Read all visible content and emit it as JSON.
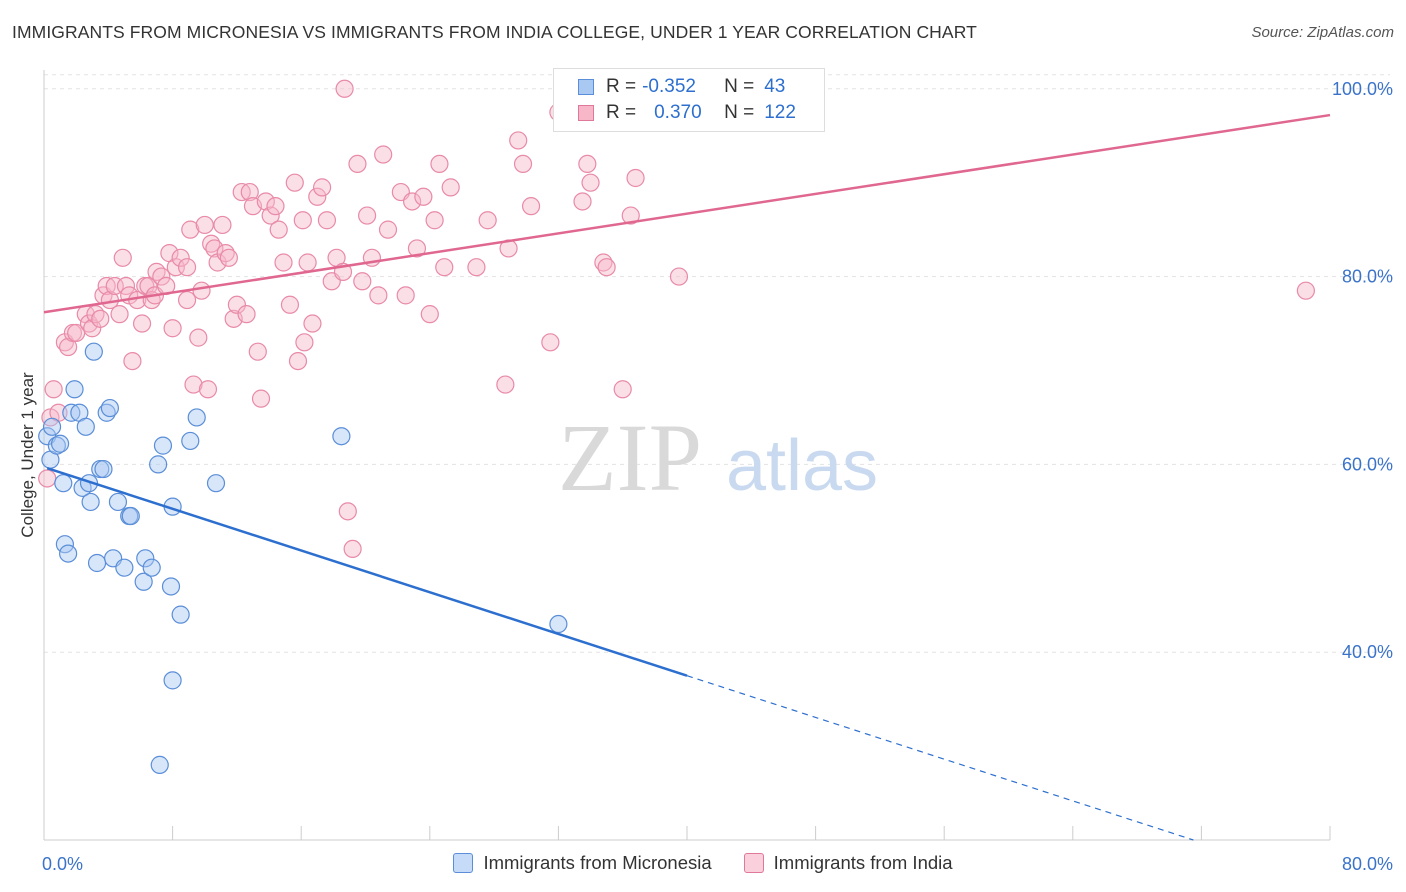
{
  "header": {
    "title": "IMMIGRANTS FROM MICRONESIA VS IMMIGRANTS FROM INDIA COLLEGE, UNDER 1 YEAR CORRELATION CHART",
    "source": "Source: ZipAtlas.com"
  },
  "watermark": {
    "zip": "ZIP",
    "atlas": "atlas"
  },
  "legend": {
    "rows": [
      {
        "r_label": "R =",
        "r_value": "-0.352",
        "n_label": "N =",
        "n_value": "43",
        "fill": "#a9c8f2",
        "stroke": "#5a8ed8"
      },
      {
        "r_label": "R =",
        "r_value": "0.370",
        "n_label": "N =",
        "n_value": "122",
        "fill": "#f7b7c9",
        "stroke": "#e0789a"
      }
    ]
  },
  "bottom_legend": [
    {
      "label": "Immigrants from Micronesia",
      "fill": "#c5dbf7",
      "stroke": "#5a8ed8"
    },
    {
      "label": "Immigrants from India",
      "fill": "#fad0dc",
      "stroke": "#e0789a"
    }
  ],
  "chart_data": {
    "type": "scatter",
    "title": "IMMIGRANTS FROM MICRONESIA VS IMMIGRANTS FROM INDIA COLLEGE, UNDER 1 YEAR CORRELATION CHART",
    "xlabel": "",
    "ylabel": "College, Under 1 year",
    "xlim": [
      0,
      80
    ],
    "ylim": [
      20,
      102
    ],
    "x_tick_labels": [
      "0.0%",
      "80.0%"
    ],
    "y_ticks": [
      40,
      60,
      80,
      100
    ],
    "y_tick_labels": [
      "40.0%",
      "60.0%",
      "80.0%",
      "100.0%"
    ],
    "grid": true,
    "legend_position": "top-center",
    "colors": {
      "micronesia": "#2d6fcf",
      "india": "#e0678f",
      "tick_label": "#3b73c9"
    },
    "series": [
      {
        "name": "Immigrants from Micronesia",
        "r": -0.352,
        "n": 43,
        "trend": {
          "x0": 0.2,
          "y0": 59.6,
          "x1": 40.0,
          "y1": 37.5,
          "dash_to_x": 71.5,
          "dash_to_y": 20.0
        },
        "points": [
          [
            0.2,
            63.0
          ],
          [
            0.4,
            60.5
          ],
          [
            0.5,
            64.0
          ],
          [
            0.8,
            62.0
          ],
          [
            1.0,
            62.2
          ],
          [
            1.2,
            58.0
          ],
          [
            1.3,
            51.5
          ],
          [
            1.5,
            50.5
          ],
          [
            1.7,
            65.5
          ],
          [
            1.9,
            68.0
          ],
          [
            2.2,
            65.5
          ],
          [
            2.4,
            57.5
          ],
          [
            2.6,
            64.0
          ],
          [
            2.8,
            58.0
          ],
          [
            2.9,
            56.0
          ],
          [
            3.1,
            72.0
          ],
          [
            3.3,
            49.5
          ],
          [
            3.5,
            59.5
          ],
          [
            3.7,
            59.5
          ],
          [
            3.9,
            65.5
          ],
          [
            4.1,
            66.0
          ],
          [
            4.3,
            50.0
          ],
          [
            4.6,
            56.0
          ],
          [
            5.0,
            49.0
          ],
          [
            5.3,
            54.5
          ],
          [
            5.4,
            54.5
          ],
          [
            6.2,
            47.5
          ],
          [
            6.3,
            50.0
          ],
          [
            6.7,
            49.0
          ],
          [
            7.1,
            60.0
          ],
          [
            7.4,
            62.0
          ],
          [
            7.9,
            47.0
          ],
          [
            8.0,
            37.0
          ],
          [
            8.0,
            55.5
          ],
          [
            8.5,
            44.0
          ],
          [
            9.1,
            62.5
          ],
          [
            9.5,
            65.0
          ],
          [
            10.7,
            58.0
          ],
          [
            7.2,
            28.0
          ],
          [
            18.5,
            63.0
          ],
          [
            32.0,
            43.0
          ]
        ]
      },
      {
        "name": "Immigrants from India",
        "r": 0.37,
        "n": 122,
        "trend": {
          "x0": 0,
          "y0": 76.2,
          "x1": 80,
          "y1": 97.2
        },
        "points": [
          [
            0.2,
            58.5
          ],
          [
            0.4,
            65.0
          ],
          [
            0.6,
            68.0
          ],
          [
            0.9,
            65.5
          ],
          [
            1.3,
            73.0
          ],
          [
            1.5,
            72.5
          ],
          [
            1.8,
            74.0
          ],
          [
            2.0,
            74.0
          ],
          [
            2.6,
            76.0
          ],
          [
            2.8,
            75.0
          ],
          [
            3.0,
            74.5
          ],
          [
            3.2,
            76.0
          ],
          [
            3.5,
            75.5
          ],
          [
            3.7,
            78.0
          ],
          [
            3.9,
            79.0
          ],
          [
            4.1,
            77.5
          ],
          [
            4.4,
            79.0
          ],
          [
            4.7,
            76.0
          ],
          [
            4.9,
            82.0
          ],
          [
            5.1,
            79.0
          ],
          [
            5.3,
            78.0
          ],
          [
            5.5,
            71.0
          ],
          [
            5.8,
            77.5
          ],
          [
            6.1,
            75.0
          ],
          [
            6.3,
            79.0
          ],
          [
            6.5,
            79.0
          ],
          [
            6.7,
            77.5
          ],
          [
            6.9,
            78.0
          ],
          [
            7.0,
            80.5
          ],
          [
            7.3,
            80.0
          ],
          [
            7.6,
            79.0
          ],
          [
            7.8,
            82.5
          ],
          [
            8.0,
            74.5
          ],
          [
            8.2,
            81.0
          ],
          [
            8.5,
            82.0
          ],
          [
            8.9,
            81.0
          ],
          [
            8.9,
            77.5
          ],
          [
            9.1,
            85.0
          ],
          [
            9.3,
            68.5
          ],
          [
            9.6,
            73.5
          ],
          [
            9.8,
            78.5
          ],
          [
            10.0,
            85.5
          ],
          [
            10.2,
            68.0
          ],
          [
            10.4,
            83.5
          ],
          [
            10.6,
            83.0
          ],
          [
            10.8,
            81.5
          ],
          [
            11.1,
            85.5
          ],
          [
            11.3,
            82.5
          ],
          [
            11.5,
            82.0
          ],
          [
            11.8,
            75.5
          ],
          [
            12.0,
            77.0
          ],
          [
            12.3,
            89.0
          ],
          [
            12.6,
            76.0
          ],
          [
            12.8,
            89.0
          ],
          [
            13.0,
            87.5
          ],
          [
            13.3,
            72.0
          ],
          [
            13.5,
            67.0
          ],
          [
            13.8,
            88.0
          ],
          [
            14.1,
            86.5
          ],
          [
            14.4,
            87.5
          ],
          [
            14.6,
            85.0
          ],
          [
            14.9,
            81.5
          ],
          [
            15.3,
            77.0
          ],
          [
            15.6,
            90.0
          ],
          [
            15.8,
            71.0
          ],
          [
            16.1,
            86.0
          ],
          [
            16.4,
            81.5
          ],
          [
            16.7,
            75.0
          ],
          [
            17.0,
            88.5
          ],
          [
            17.3,
            89.5
          ],
          [
            17.6,
            86.0
          ],
          [
            17.9,
            79.5
          ],
          [
            18.2,
            82.0
          ],
          [
            18.6,
            80.5
          ],
          [
            18.9,
            55.0
          ],
          [
            19.2,
            51.0
          ],
          [
            19.5,
            92.0
          ],
          [
            19.8,
            79.5
          ],
          [
            20.1,
            86.5
          ],
          [
            20.4,
            82.0
          ],
          [
            20.8,
            78.0
          ],
          [
            21.1,
            93.0
          ],
          [
            21.4,
            85.0
          ],
          [
            22.2,
            89.0
          ],
          [
            22.5,
            78.0
          ],
          [
            22.9,
            88.0
          ],
          [
            23.2,
            83.0
          ],
          [
            23.6,
            88.5
          ],
          [
            24.0,
            76.0
          ],
          [
            24.3,
            86.0
          ],
          [
            24.6,
            92.0
          ],
          [
            24.9,
            81.0
          ],
          [
            25.3,
            89.5
          ],
          [
            26.9,
            81.0
          ],
          [
            27.6,
            86.0
          ],
          [
            28.7,
            68.5
          ],
          [
            28.9,
            83.0
          ],
          [
            29.5,
            94.5
          ],
          [
            29.8,
            92.0
          ],
          [
            30.3,
            87.5
          ],
          [
            31.5,
            73.0
          ],
          [
            32.0,
            97.5
          ],
          [
            33.5,
            88.0
          ],
          [
            33.8,
            92.0
          ],
          [
            34.0,
            90.0
          ],
          [
            34.8,
            81.5
          ],
          [
            35.0,
            81.0
          ],
          [
            36.0,
            68.0
          ],
          [
            36.5,
            86.5
          ],
          [
            36.8,
            90.5
          ],
          [
            39.5,
            80.0
          ],
          [
            78.5,
            78.5
          ],
          [
            18.7,
            100.0
          ],
          [
            16.2,
            73.0
          ]
        ]
      }
    ]
  }
}
